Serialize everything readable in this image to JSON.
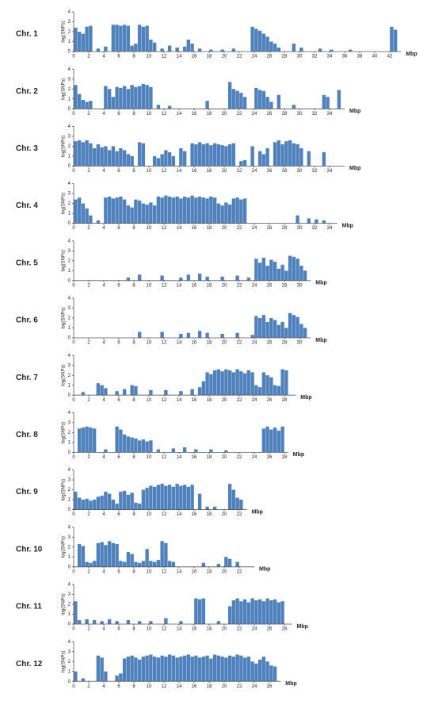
{
  "chart_data": [
    {
      "type": "bar",
      "title": "Chr. 1",
      "ylabel": "log(SNPs)",
      "xlabel": "Mbp",
      "color": "#4f81bd",
      "xlim": [
        0,
        43.5
      ],
      "ylim": [
        0,
        4
      ],
      "yticks": [
        0,
        1,
        2,
        3,
        4
      ],
      "xticks": [
        0,
        2,
        4,
        6,
        8,
        10,
        12,
        14,
        16,
        18,
        20,
        22,
        24,
        26,
        28,
        30,
        32,
        34,
        36,
        38,
        40,
        42
      ],
      "x": [
        0.25,
        0.75,
        1.25,
        1.75,
        2.25,
        3.25,
        4.25,
        5.25,
        5.75,
        6.25,
        6.75,
        7.25,
        7.75,
        8.25,
        8.75,
        9.25,
        9.75,
        10.25,
        10.75,
        11.75,
        12.75,
        13.75,
        14.75,
        15.25,
        15.75,
        16.75,
        18.25,
        19.75,
        21.25,
        23.75,
        24.25,
        24.75,
        25.25,
        25.75,
        26.25,
        26.75,
        27.25,
        29.25,
        30.25,
        32.75,
        34.25,
        36.75,
        42.25,
        42.75
      ],
      "values": [
        2.4,
        2.0,
        1.8,
        2.5,
        2.6,
        0.3,
        0.5,
        2.7,
        2.7,
        2.6,
        2.7,
        2.6,
        0.6,
        0.8,
        2.7,
        2.5,
        2.6,
        1.2,
        0.9,
        0.3,
        0.6,
        0.4,
        0.5,
        1.2,
        0.8,
        0.3,
        0.2,
        0.2,
        0.3,
        2.5,
        2.3,
        2.1,
        1.8,
        1.5,
        1.0,
        0.8,
        0.4,
        0.8,
        0.4,
        0.3,
        0.2,
        0.2,
        2.5,
        2.2
      ]
    },
    {
      "type": "bar",
      "title": "Chr. 2",
      "ylabel": "log(SNPs)",
      "xlabel": "Mbp",
      "color": "#4f81bd",
      "xlim": [
        0,
        36
      ],
      "ylim": [
        0,
        4
      ],
      "yticks": [
        0,
        1,
        2,
        3,
        4
      ],
      "xticks": [
        0,
        2,
        4,
        6,
        8,
        10,
        12,
        14,
        16,
        18,
        20,
        22,
        24,
        26,
        28,
        30,
        32,
        34
      ],
      "x": [
        0.25,
        0.75,
        1.25,
        1.75,
        2.25,
        4.25,
        4.75,
        5.25,
        5.75,
        6.25,
        6.75,
        7.25,
        7.75,
        8.25,
        8.75,
        9.25,
        9.75,
        10.25,
        11.25,
        12.75,
        17.75,
        20.75,
        21.25,
        21.75,
        22.25,
        22.75,
        24.25,
        24.75,
        25.25,
        25.75,
        26.25,
        27.25,
        29.25,
        33.25,
        33.75,
        35.25
      ],
      "values": [
        2.4,
        1.5,
        0.9,
        0.7,
        0.8,
        2.3,
        2.0,
        1.2,
        2.2,
        2.1,
        2.3,
        2.0,
        2.4,
        2.2,
        2.3,
        2.5,
        2.4,
        2.2,
        0.4,
        0.3,
        0.8,
        2.7,
        2.0,
        1.8,
        1.6,
        1.2,
        2.1,
        1.9,
        1.8,
        1.2,
        0.7,
        1.4,
        0.4,
        1.4,
        1.2,
        1.9
      ]
    },
    {
      "type": "bar",
      "title": "Chr. 3",
      "ylabel": "log(SNPs)",
      "xlabel": "Mbp",
      "color": "#4f81bd",
      "xlim": [
        0,
        36
      ],
      "ylim": [
        0,
        4
      ],
      "yticks": [
        0,
        1,
        2,
        3,
        4
      ],
      "xticks": [
        0,
        2,
        4,
        6,
        8,
        10,
        12,
        14,
        16,
        18,
        20,
        22,
        24,
        26,
        28,
        30,
        32,
        34
      ],
      "x": [
        0.25,
        0.75,
        1.25,
        1.75,
        2.25,
        2.75,
        3.25,
        3.75,
        4.25,
        4.75,
        5.25,
        5.75,
        6.25,
        6.75,
        7.25,
        7.75,
        8.75,
        9.25,
        10.75,
        11.25,
        11.75,
        12.25,
        12.75,
        13.25,
        14.25,
        14.75,
        15.75,
        16.25,
        16.75,
        17.25,
        17.75,
        18.25,
        18.75,
        19.25,
        19.75,
        20.25,
        20.75,
        21.25,
        22.25,
        22.75,
        23.75,
        24.75,
        25.25,
        25.75,
        26.75,
        27.25,
        27.75,
        28.25,
        28.75,
        29.25,
        29.75,
        30.25,
        31.25,
        33.25
      ],
      "values": [
        2.5,
        2.6,
        2.4,
        2.6,
        2.3,
        1.8,
        2.2,
        1.9,
        2.0,
        1.6,
        2.0,
        1.5,
        1.8,
        1.6,
        1.2,
        1.0,
        2.4,
        2.3,
        1.0,
        0.8,
        1.2,
        1.6,
        1.4,
        1.0,
        1.8,
        1.5,
        2.3,
        2.2,
        2.4,
        2.2,
        2.3,
        2.1,
        2.3,
        2.2,
        2.1,
        2.0,
        2.2,
        2.3,
        0.5,
        0.6,
        2.0,
        1.5,
        1.2,
        1.8,
        2.4,
        2.6,
        2.2,
        2.5,
        2.6,
        2.3,
        2.2,
        1.8,
        1.5,
        1.4
      ]
    },
    {
      "type": "bar",
      "title": "Chr. 4",
      "ylabel": "log(SNPs)",
      "xlabel": "Mbp",
      "color": "#4f81bd",
      "xlim": [
        0,
        35
      ],
      "ylim": [
        0,
        4
      ],
      "yticks": [
        0,
        1,
        2,
        3,
        4
      ],
      "xticks": [
        0,
        2,
        4,
        6,
        8,
        10,
        12,
        14,
        16,
        18,
        20,
        22,
        24,
        26,
        28,
        30,
        32,
        34
      ],
      "x": [
        0.25,
        0.75,
        1.25,
        1.75,
        2.25,
        3.25,
        4.25,
        4.75,
        5.25,
        5.75,
        6.25,
        6.75,
        7.25,
        7.75,
        8.25,
        8.75,
        9.25,
        9.75,
        10.25,
        10.75,
        11.25,
        11.75,
        12.25,
        12.75,
        13.25,
        13.75,
        14.25,
        14.75,
        15.25,
        15.75,
        16.25,
        16.75,
        17.25,
        17.75,
        18.25,
        18.75,
        19.25,
        19.75,
        20.25,
        20.75,
        21.25,
        21.75,
        22.25,
        22.75,
        29.75,
        31.25,
        32.25,
        33.25
      ],
      "values": [
        2.4,
        2.6,
        2.0,
        1.5,
        0.8,
        0.3,
        2.6,
        2.7,
        2.5,
        2.6,
        2.7,
        2.4,
        1.8,
        1.6,
        2.4,
        2.3,
        2.0,
        1.9,
        2.1,
        1.8,
        2.7,
        2.6,
        2.8,
        2.7,
        2.6,
        2.7,
        2.5,
        2.7,
        2.6,
        2.8,
        2.6,
        2.7,
        2.6,
        2.5,
        2.7,
        2.6,
        2.0,
        1.8,
        2.1,
        1.9,
        2.5,
        2.6,
        2.4,
        2.5,
        0.8,
        0.5,
        0.4,
        0.3
      ]
    },
    {
      "type": "bar",
      "title": "Chr. 5",
      "ylabel": "log(SNPs)",
      "xlabel": "Mbp",
      "color": "#4f81bd",
      "xlim": [
        0,
        31.5
      ],
      "ylim": [
        0,
        4
      ],
      "yticks": [
        0,
        1,
        2,
        3,
        4
      ],
      "xticks": [
        0,
        2,
        4,
        6,
        8,
        10,
        12,
        14,
        16,
        18,
        20,
        22,
        24,
        26,
        28,
        30
      ],
      "x": [
        7.25,
        8.75,
        11.75,
        14.25,
        15.25,
        16.75,
        17.75,
        19.75,
        21.75,
        23.25,
        24.25,
        24.75,
        25.25,
        25.75,
        26.25,
        26.75,
        27.25,
        27.75,
        28.25,
        28.75,
        29.25,
        29.75,
        30.25,
        30.75
      ],
      "values": [
        0.3,
        0.6,
        0.5,
        0.3,
        0.6,
        0.7,
        0.4,
        0.4,
        0.5,
        0.3,
        2.2,
        1.8,
        2.3,
        1.5,
        2.1,
        1.9,
        1.2,
        1.6,
        1.0,
        2.5,
        2.4,
        2.2,
        1.5,
        1.0
      ]
    },
    {
      "type": "bar",
      "title": "Chr. 6",
      "ylabel": "log(SNPs)",
      "xlabel": "Mbp",
      "color": "#4f81bd",
      "xlim": [
        0,
        31.5
      ],
      "ylim": [
        0,
        4
      ],
      "yticks": [
        0,
        1,
        2,
        3,
        4
      ],
      "xticks": [
        0,
        2,
        4,
        6,
        8,
        10,
        12,
        14,
        16,
        18,
        20,
        22,
        24,
        26,
        28,
        30
      ],
      "x": [
        8.75,
        11.75,
        14.25,
        15.25,
        16.75,
        17.75,
        19.75,
        21.75,
        23.75,
        24.25,
        24.75,
        25.25,
        25.75,
        26.25,
        26.75,
        27.25,
        27.75,
        28.25,
        28.75,
        29.25,
        29.75,
        30.25,
        30.75
      ],
      "values": [
        0.6,
        0.6,
        0.4,
        0.5,
        0.7,
        0.5,
        0.4,
        0.5,
        0.3,
        2.2,
        2.0,
        2.3,
        1.6,
        2.0,
        1.8,
        1.3,
        1.6,
        1.0,
        2.5,
        2.3,
        2.1,
        1.4,
        1.0
      ]
    },
    {
      "type": "bar",
      "title": "Chr. 7",
      "ylabel": "log(SNPs)",
      "xlabel": "Mbp",
      "color": "#4f81bd",
      "xlim": [
        0,
        29.5
      ],
      "ylim": [
        0,
        4
      ],
      "yticks": [
        0,
        1,
        2,
        3,
        4
      ],
      "xticks": [
        0,
        2,
        4,
        6,
        8,
        10,
        12,
        14,
        16,
        18,
        20,
        22,
        24,
        26,
        28
      ],
      "x": [
        1.25,
        3.25,
        3.75,
        4.25,
        5.75,
        6.75,
        7.75,
        8.25,
        10.25,
        12.25,
        14.25,
        15.75,
        16.75,
        17.25,
        17.75,
        18.25,
        18.75,
        19.25,
        19.75,
        20.25,
        20.75,
        21.25,
        21.75,
        22.25,
        22.75,
        23.25,
        23.75,
        24.25,
        24.75,
        25.25,
        25.75,
        26.25,
        26.75,
        27.25,
        27.75,
        28.25
      ],
      "values": [
        0.3,
        1.2,
        1.0,
        0.7,
        0.4,
        0.6,
        1.0,
        0.9,
        0.5,
        0.5,
        0.4,
        0.6,
        0.8,
        1.4,
        2.3,
        2.1,
        2.5,
        2.6,
        2.4,
        2.6,
        2.5,
        2.3,
        2.6,
        2.4,
        2.2,
        2.5,
        2.3,
        1.0,
        0.8,
        2.3,
        2.0,
        1.8,
        1.0,
        0.9,
        2.6,
        2.5
      ]
    },
    {
      "type": "bar",
      "title": "Chr. 8",
      "ylabel": "log(SNPs)",
      "xlabel": "Mbp",
      "color": "#4f81bd",
      "xlim": [
        0,
        28.5
      ],
      "ylim": [
        0,
        4
      ],
      "yticks": [
        0,
        1,
        2,
        3,
        4
      ],
      "xticks": [
        0,
        2,
        4,
        6,
        8,
        10,
        12,
        14,
        16,
        18,
        20,
        22,
        24,
        26,
        28
      ],
      "x": [
        0.75,
        1.25,
        1.75,
        2.25,
        2.75,
        4.25,
        5.75,
        6.25,
        6.75,
        7.25,
        7.75,
        8.25,
        8.75,
        9.25,
        9.75,
        10.25,
        11.25,
        13.25,
        14.75,
        16.25,
        18.25,
        20.25,
        25.25,
        25.75,
        26.25,
        26.75,
        27.25,
        27.75
      ],
      "values": [
        2.4,
        2.5,
        2.6,
        2.5,
        2.4,
        0.3,
        2.6,
        2.3,
        1.8,
        1.6,
        1.5,
        1.4,
        1.2,
        1.3,
        1.1,
        1.2,
        0.3,
        0.4,
        0.5,
        0.3,
        0.3,
        0.2,
        2.4,
        2.6,
        2.3,
        2.5,
        2.2,
        2.6
      ]
    },
    {
      "type": "bar",
      "title": "Chr. 9",
      "ylabel": "log(SNPs)",
      "xlabel": "Mbp",
      "color": "#4f81bd",
      "xlim": [
        0,
        23
      ],
      "ylim": [
        0,
        4
      ],
      "yticks": [
        0,
        1,
        2,
        3,
        4
      ],
      "xticks": [
        0,
        2,
        4,
        6,
        8,
        10,
        12,
        14,
        16,
        18,
        20,
        22
      ],
      "x": [
        0.25,
        0.75,
        1.25,
        1.75,
        2.25,
        2.75,
        3.25,
        3.75,
        4.25,
        4.75,
        5.25,
        5.75,
        6.25,
        6.75,
        7.25,
        7.75,
        8.25,
        8.75,
        9.25,
        9.75,
        10.25,
        10.75,
        11.25,
        11.75,
        12.25,
        12.75,
        13.25,
        13.75,
        14.25,
        14.75,
        15.25,
        15.75,
        16.75,
        17.75,
        18.75,
        20.75,
        21.25,
        21.75,
        22.25
      ],
      "values": [
        1.8,
        1.2,
        1.0,
        1.1,
        0.9,
        1.0,
        1.3,
        1.4,
        1.8,
        1.6,
        1.0,
        0.6,
        1.8,
        1.9,
        1.5,
        1.7,
        0.7,
        0.6,
        2.0,
        2.2,
        2.4,
        2.3,
        2.5,
        2.6,
        2.4,
        2.5,
        2.3,
        2.6,
        2.4,
        2.5,
        2.3,
        2.5,
        1.6,
        0.3,
        0.3,
        2.6,
        2.0,
        1.2,
        1.0
      ]
    },
    {
      "type": "bar",
      "title": "Chr. 10",
      "ylabel": "log(SNPs)",
      "xlabel": "Mbp",
      "color": "#4f81bd",
      "xlim": [
        0,
        24
      ],
      "ylim": [
        0,
        4
      ],
      "yticks": [
        0,
        1,
        2,
        3,
        4
      ],
      "xticks": [
        0,
        2,
        4,
        6,
        8,
        10,
        12,
        14,
        16,
        18,
        20,
        22
      ],
      "x": [
        0.75,
        1.25,
        1.75,
        2.25,
        2.75,
        3.25,
        3.75,
        4.25,
        4.75,
        5.25,
        5.75,
        6.25,
        6.75,
        7.25,
        7.75,
        8.25,
        8.75,
        9.25,
        9.75,
        10.25,
        10.75,
        11.25,
        11.75,
        12.25,
        12.75,
        13.25,
        17.25,
        19.25,
        20.25,
        20.75,
        21.75
      ],
      "values": [
        2.3,
        2.1,
        0.5,
        0.4,
        0.6,
        2.4,
        2.5,
        2.2,
        2.6,
        2.4,
        2.3,
        0.6,
        0.5,
        1.5,
        1.3,
        0.5,
        0.4,
        0.6,
        1.8,
        0.6,
        0.5,
        0.7,
        2.6,
        2.4,
        0.6,
        0.5,
        0.4,
        0.3,
        1.0,
        0.8,
        0.5
      ]
    },
    {
      "type": "bar",
      "title": "Chr. 11",
      "ylabel": "log(SNPs)",
      "xlabel": "Mbp",
      "color": "#4f81bd",
      "xlim": [
        0,
        29
      ],
      "ylim": [
        0,
        4
      ],
      "yticks": [
        0,
        1,
        2,
        3,
        4
      ],
      "xticks": [
        0,
        2,
        4,
        6,
        8,
        10,
        12,
        14,
        16,
        18,
        20,
        22,
        24,
        26,
        28
      ],
      "x": [
        0.25,
        0.75,
        1.75,
        2.75,
        3.75,
        4.75,
        5.75,
        7.25,
        8.75,
        10.25,
        12.25,
        14.25,
        16.25,
        16.75,
        17.25,
        19.25,
        20.75,
        21.25,
        21.75,
        22.25,
        22.75,
        23.25,
        23.75,
        24.25,
        24.75,
        25.25,
        25.75,
        26.25,
        26.75,
        27.25,
        27.75
      ],
      "values": [
        2.3,
        0.4,
        0.5,
        0.4,
        0.3,
        0.5,
        0.3,
        0.4,
        0.3,
        0.3,
        0.6,
        0.3,
        2.6,
        2.5,
        2.6,
        0.3,
        1.8,
        2.4,
        2.6,
        2.3,
        2.5,
        2.2,
        2.6,
        2.4,
        2.5,
        2.3,
        2.6,
        2.4,
        2.5,
        2.2,
        2.3
      ]
    },
    {
      "type": "bar",
      "title": "Chr. 12",
      "ylabel": "log(SNPs)",
      "xlabel": "Mbp",
      "color": "#4f81bd",
      "xlim": [
        0,
        27.5
      ],
      "ylim": [
        0,
        4
      ],
      "yticks": [
        0,
        1,
        2,
        3,
        4
      ],
      "xticks": [
        0,
        2,
        4,
        6,
        8,
        10,
        12,
        14,
        16,
        18,
        20,
        22,
        24,
        26
      ],
      "x": [
        0.25,
        1.25,
        3.25,
        3.75,
        4.25,
        5.75,
        6.25,
        6.75,
        7.25,
        7.75,
        8.25,
        8.75,
        9.25,
        9.75,
        10.25,
        10.75,
        11.25,
        11.75,
        12.25,
        12.75,
        13.25,
        13.75,
        14.25,
        14.75,
        15.25,
        15.75,
        16.25,
        16.75,
        17.25,
        17.75,
        18.25,
        18.75,
        19.25,
        19.75,
        20.25,
        20.75,
        21.25,
        21.75,
        22.25,
        22.75,
        23.25,
        23.75,
        24.25,
        24.75,
        25.25,
        25.75,
        26.25,
        26.75
      ],
      "values": [
        1.0,
        0.3,
        2.6,
        2.4,
        1.0,
        0.6,
        0.8,
        2.3,
        2.5,
        2.6,
        2.4,
        2.2,
        2.5,
        2.6,
        2.7,
        2.5,
        2.4,
        2.6,
        2.5,
        2.7,
        2.6,
        2.4,
        2.5,
        2.6,
        2.7,
        2.5,
        2.6,
        2.4,
        2.5,
        2.6,
        2.3,
        2.7,
        2.6,
        2.5,
        2.4,
        2.6,
        2.5,
        2.7,
        2.6,
        2.4,
        2.5,
        2.0,
        1.8,
        2.2,
        2.5,
        2.0,
        1.6,
        1.5
      ]
    }
  ]
}
